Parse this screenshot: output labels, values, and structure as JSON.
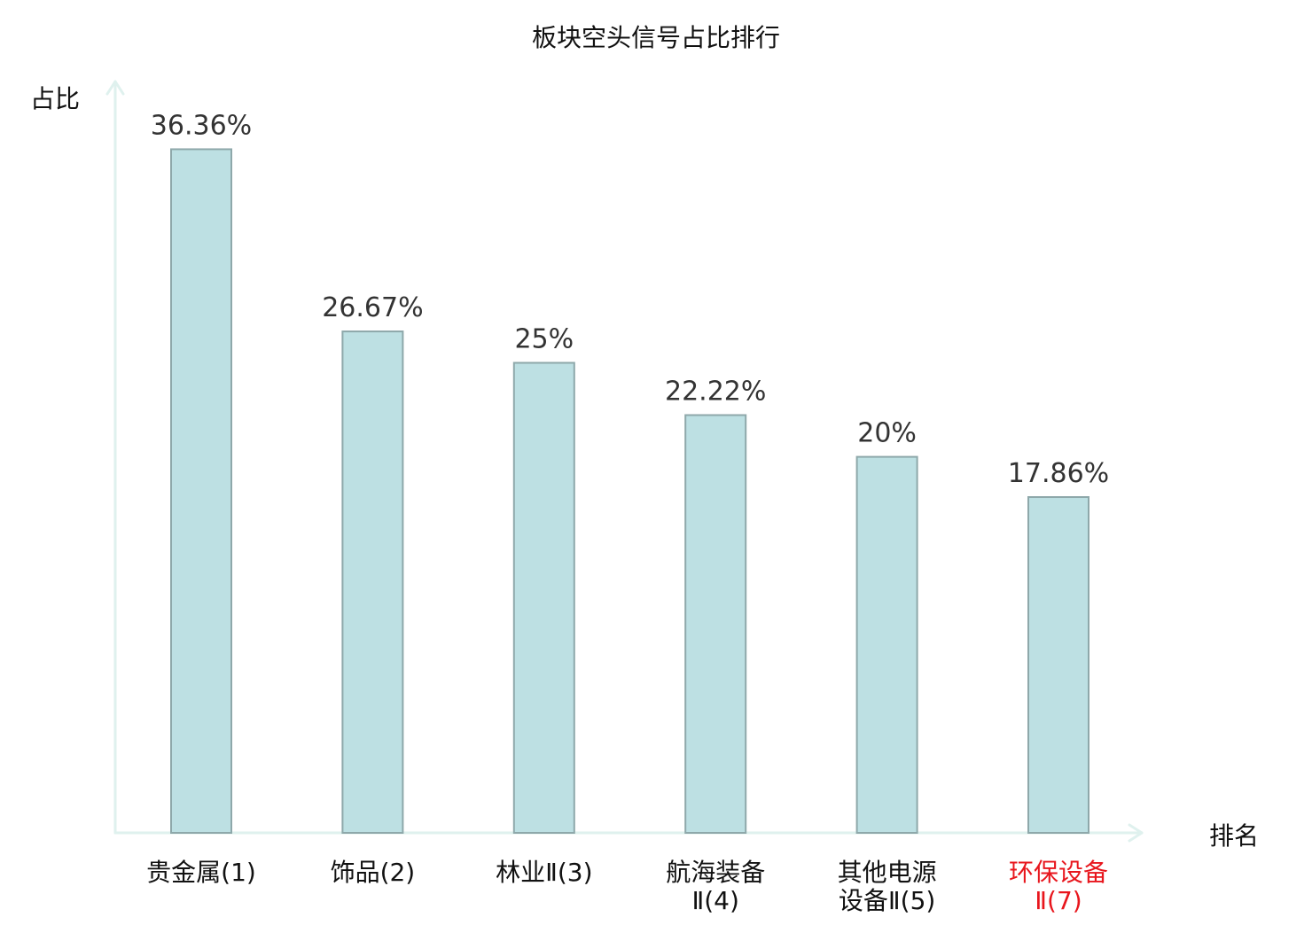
{
  "chart_data": {
    "type": "bar",
    "title": "板块空头信号占比排行",
    "ylabel": "占比",
    "xlabel": "排名",
    "categories": [
      [
        "贵金属(1)"
      ],
      [
        "饰品(2)"
      ],
      [
        "林业Ⅱ(3)"
      ],
      [
        "航海装备",
        "Ⅱ(4)"
      ],
      [
        "其他电源",
        "设备Ⅱ(5)"
      ],
      [
        "环保设备",
        "Ⅱ(7)"
      ]
    ],
    "values": [
      36.36,
      26.67,
      25,
      22.22,
      20,
      17.86
    ],
    "data_labels": [
      "36.36%",
      "26.67%",
      "25%",
      "22.22%",
      "20%",
      "17.86%"
    ],
    "highlight_index": 5,
    "ylim": [
      0,
      40
    ],
    "grid": false,
    "legend": "none"
  },
  "colors": {
    "bar_fill": "#bde0e3",
    "bar_stroke": "#8ea8aa",
    "axis": "#dff1ee",
    "text": "#111111",
    "value_label": "#333333",
    "highlight": "#e8161d"
  }
}
